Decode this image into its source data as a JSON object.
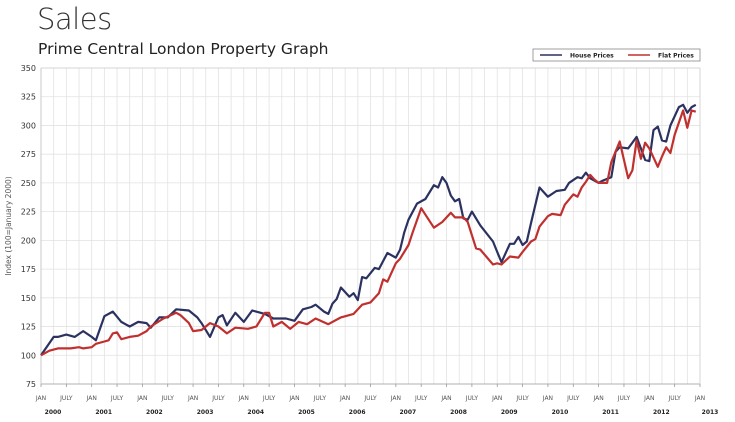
{
  "title": "Sales",
  "subtitle": "Prime Central London Property Graph",
  "chart_data": {
    "type": "line",
    "ylabel": "Index (100=January 2000)",
    "ylim": [
      75,
      350
    ],
    "yticks": [
      75,
      100,
      125,
      150,
      175,
      200,
      225,
      250,
      275,
      300,
      325,
      350
    ],
    "xlim": [
      "2000-01",
      "2013-01"
    ],
    "xtick_month_labels": [
      "JAN",
      "JULY"
    ],
    "xtick_years": [
      "2000",
      "2001",
      "2002",
      "2003",
      "2004",
      "2005",
      "2006",
      "2007",
      "2008",
      "2009",
      "2010",
      "2011",
      "2012",
      "2013"
    ],
    "grid": true,
    "legend_position": "top-right",
    "series": [
      {
        "name": "House Prices",
        "color": "#2b3260",
        "points": [
          [
            "2000-01",
            100
          ],
          [
            "2000-04",
            116
          ],
          [
            "2000-05",
            116
          ],
          [
            "2000-07",
            118
          ],
          [
            "2000-09",
            116
          ],
          [
            "2000-11",
            121
          ],
          [
            "2001-01",
            116
          ],
          [
            "2001-02",
            113
          ],
          [
            "2001-04",
            134
          ],
          [
            "2001-06",
            138
          ],
          [
            "2001-08",
            129
          ],
          [
            "2001-10",
            125
          ],
          [
            "2001-12",
            129
          ],
          [
            "2002-02",
            128
          ],
          [
            "2002-03",
            124
          ],
          [
            "2002-05",
            133
          ],
          [
            "2002-07",
            133
          ],
          [
            "2002-09",
            140
          ],
          [
            "2002-12",
            139
          ],
          [
            "2003-02",
            133
          ],
          [
            "2003-03",
            128
          ],
          [
            "2003-05",
            116
          ],
          [
            "2003-07",
            133
          ],
          [
            "2003-08",
            135
          ],
          [
            "2003-09",
            126
          ],
          [
            "2003-11",
            137
          ],
          [
            "2004-01",
            129
          ],
          [
            "2004-03",
            139
          ],
          [
            "2004-05",
            137
          ],
          [
            "2004-06",
            136
          ],
          [
            "2004-08",
            132
          ],
          [
            "2004-11",
            132
          ],
          [
            "2005-01",
            130
          ],
          [
            "2005-03",
            140
          ],
          [
            "2005-05",
            142
          ],
          [
            "2005-06",
            144
          ],
          [
            "2005-08",
            138
          ],
          [
            "2005-09",
            136
          ],
          [
            "2005-10",
            145
          ],
          [
            "2005-11",
            149
          ],
          [
            "2005-12",
            159
          ],
          [
            "2006-02",
            151
          ],
          [
            "2006-03",
            154
          ],
          [
            "2006-04",
            148
          ],
          [
            "2006-05",
            168
          ],
          [
            "2006-06",
            167
          ],
          [
            "2006-08",
            176
          ],
          [
            "2006-09",
            175
          ],
          [
            "2006-11",
            189
          ],
          [
            "2007-01",
            185
          ],
          [
            "2007-02",
            192
          ],
          [
            "2007-03",
            207
          ],
          [
            "2007-04",
            218
          ],
          [
            "2007-06",
            232
          ],
          [
            "2007-08",
            236
          ],
          [
            "2007-10",
            248
          ],
          [
            "2007-11",
            246
          ],
          [
            "2007-12",
            255
          ],
          [
            "2008-01",
            250
          ],
          [
            "2008-02",
            239
          ],
          [
            "2008-03",
            234
          ],
          [
            "2008-04",
            236
          ],
          [
            "2008-05",
            219
          ],
          [
            "2008-06",
            218
          ],
          [
            "2008-07",
            225
          ],
          [
            "2008-09",
            213
          ],
          [
            "2008-12",
            199
          ],
          [
            "2009-01",
            190
          ],
          [
            "2009-02",
            181
          ],
          [
            "2009-04",
            197
          ],
          [
            "2009-05",
            197
          ],
          [
            "2009-06",
            203
          ],
          [
            "2009-07",
            196
          ],
          [
            "2009-08",
            199
          ],
          [
            "2009-09",
            215
          ],
          [
            "2009-11",
            246
          ],
          [
            "2010-01",
            238
          ],
          [
            "2010-03",
            243
          ],
          [
            "2010-05",
            244
          ],
          [
            "2010-06",
            250
          ],
          [
            "2010-08",
            255
          ],
          [
            "2010-09",
            254
          ],
          [
            "2010-10",
            259
          ],
          [
            "2010-11",
            254
          ],
          [
            "2011-01",
            250
          ],
          [
            "2011-02",
            252
          ],
          [
            "2011-04",
            255
          ],
          [
            "2011-05",
            277
          ],
          [
            "2011-06",
            281
          ],
          [
            "2011-08",
            280
          ],
          [
            "2011-10",
            290
          ],
          [
            "2011-11",
            280
          ],
          [
            "2011-12",
            270
          ],
          [
            "2012-01",
            269
          ],
          [
            "2012-02",
            296
          ],
          [
            "2012-03",
            299
          ],
          [
            "2012-04",
            287
          ],
          [
            "2012-05",
            286
          ],
          [
            "2012-06",
            300
          ],
          [
            "2012-08",
            316
          ],
          [
            "2012-09",
            318
          ],
          [
            "2012-10",
            311
          ],
          [
            "2012-11",
            316
          ],
          [
            "2012-12",
            318
          ]
        ]
      },
      {
        "name": "Flat Prices",
        "color": "#c0302e",
        "points": [
          [
            "2000-01",
            100
          ],
          [
            "2000-03",
            104
          ],
          [
            "2000-05",
            106
          ],
          [
            "2000-08",
            106
          ],
          [
            "2000-10",
            107
          ],
          [
            "2000-11",
            106
          ],
          [
            "2001-01",
            107
          ],
          [
            "2001-02",
            110
          ],
          [
            "2001-04",
            112
          ],
          [
            "2001-05",
            113
          ],
          [
            "2001-06",
            119
          ],
          [
            "2001-07",
            120
          ],
          [
            "2001-08",
            114
          ],
          [
            "2001-10",
            116
          ],
          [
            "2001-12",
            117
          ],
          [
            "2002-02",
            121
          ],
          [
            "2002-03",
            125
          ],
          [
            "2002-06",
            132
          ],
          [
            "2002-09",
            137
          ],
          [
            "2002-10",
            135
          ],
          [
            "2002-12",
            128
          ],
          [
            "2003-01",
            121
          ],
          [
            "2003-03",
            122
          ],
          [
            "2003-05",
            128
          ],
          [
            "2003-07",
            125
          ],
          [
            "2003-09",
            119
          ],
          [
            "2003-11",
            124
          ],
          [
            "2004-02",
            123
          ],
          [
            "2004-04",
            125
          ],
          [
            "2004-06",
            137
          ],
          [
            "2004-07",
            137
          ],
          [
            "2004-08",
            125
          ],
          [
            "2004-10",
            129
          ],
          [
            "2004-12",
            123
          ],
          [
            "2005-02",
            129
          ],
          [
            "2005-04",
            127
          ],
          [
            "2005-06",
            132
          ],
          [
            "2005-09",
            127
          ],
          [
            "2005-12",
            133
          ],
          [
            "2006-03",
            136
          ],
          [
            "2006-05",
            144
          ],
          [
            "2006-07",
            146
          ],
          [
            "2006-09",
            154
          ],
          [
            "2006-10",
            166
          ],
          [
            "2006-11",
            164
          ],
          [
            "2007-01",
            180
          ],
          [
            "2007-02",
            184
          ],
          [
            "2007-04",
            196
          ],
          [
            "2007-05",
            207
          ],
          [
            "2007-07",
            228
          ],
          [
            "2007-10",
            211
          ],
          [
            "2007-12",
            216
          ],
          [
            "2008-02",
            224
          ],
          [
            "2008-03",
            220
          ],
          [
            "2008-05",
            220
          ],
          [
            "2008-06",
            216
          ],
          [
            "2008-08",
            193
          ],
          [
            "2008-09",
            192
          ],
          [
            "2008-12",
            179
          ],
          [
            "2009-01",
            180
          ],
          [
            "2009-02",
            179
          ],
          [
            "2009-04",
            186
          ],
          [
            "2009-06",
            185
          ],
          [
            "2009-07",
            190
          ],
          [
            "2009-09",
            199
          ],
          [
            "2009-10",
            201
          ],
          [
            "2009-11",
            212
          ],
          [
            "2010-01",
            221
          ],
          [
            "2010-02",
            223
          ],
          [
            "2010-04",
            222
          ],
          [
            "2010-05",
            231
          ],
          [
            "2010-07",
            240
          ],
          [
            "2010-08",
            238
          ],
          [
            "2010-09",
            246
          ],
          [
            "2010-10",
            251
          ],
          [
            "2010-11",
            257
          ],
          [
            "2010-12",
            253
          ],
          [
            "2011-01",
            250
          ],
          [
            "2011-03",
            250
          ],
          [
            "2011-04",
            268
          ],
          [
            "2011-06",
            286
          ],
          [
            "2011-08",
            254
          ],
          [
            "2011-09",
            261
          ],
          [
            "2011-10",
            287
          ],
          [
            "2011-11",
            271
          ],
          [
            "2011-12",
            285
          ],
          [
            "2012-01",
            280
          ],
          [
            "2012-03",
            264
          ],
          [
            "2012-04",
            273
          ],
          [
            "2012-05",
            281
          ],
          [
            "2012-06",
            276
          ],
          [
            "2012-07",
            292
          ],
          [
            "2012-09",
            313
          ],
          [
            "2012-10",
            298
          ],
          [
            "2012-11",
            313
          ],
          [
            "2012-12",
            312
          ]
        ]
      }
    ]
  }
}
